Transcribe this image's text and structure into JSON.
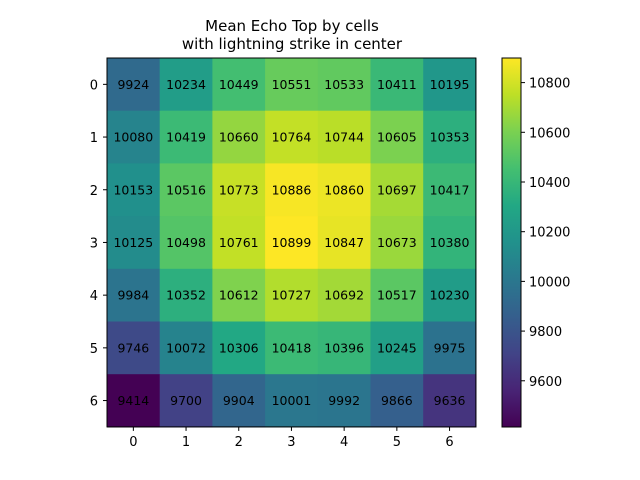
{
  "chart_data": {
    "type": "heatmap",
    "title_line1": "Mean Echo Top by cells",
    "title_line2": "with lightning strike in center",
    "xlabel": "",
    "ylabel": "",
    "x_ticks": [
      "0",
      "1",
      "2",
      "3",
      "4",
      "5",
      "6"
    ],
    "y_ticks": [
      "0",
      "1",
      "2",
      "3",
      "4",
      "5",
      "6"
    ],
    "values": [
      [
        9924,
        10234,
        10449,
        10551,
        10533,
        10411,
        10195
      ],
      [
        10080,
        10419,
        10660,
        10764,
        10744,
        10605,
        10353
      ],
      [
        10153,
        10516,
        10773,
        10886,
        10860,
        10697,
        10417
      ],
      [
        10125,
        10498,
        10761,
        10899,
        10847,
        10673,
        10380
      ],
      [
        9984,
        10352,
        10612,
        10727,
        10692,
        10517,
        10230
      ],
      [
        9746,
        10072,
        10306,
        10418,
        10396,
        10245,
        9975
      ],
      [
        9414,
        9700,
        9904,
        10001,
        9992,
        9866,
        9636
      ]
    ],
    "colormap": "viridis",
    "vmin": 9414,
    "vmax": 10899,
    "colorbar_ticks": [
      9600,
      9800,
      10000,
      10200,
      10400,
      10600,
      10800
    ],
    "colorbar_tick_labels": [
      "9600",
      "9800",
      "10000",
      "10200",
      "10400",
      "10600",
      "10800"
    ]
  }
}
